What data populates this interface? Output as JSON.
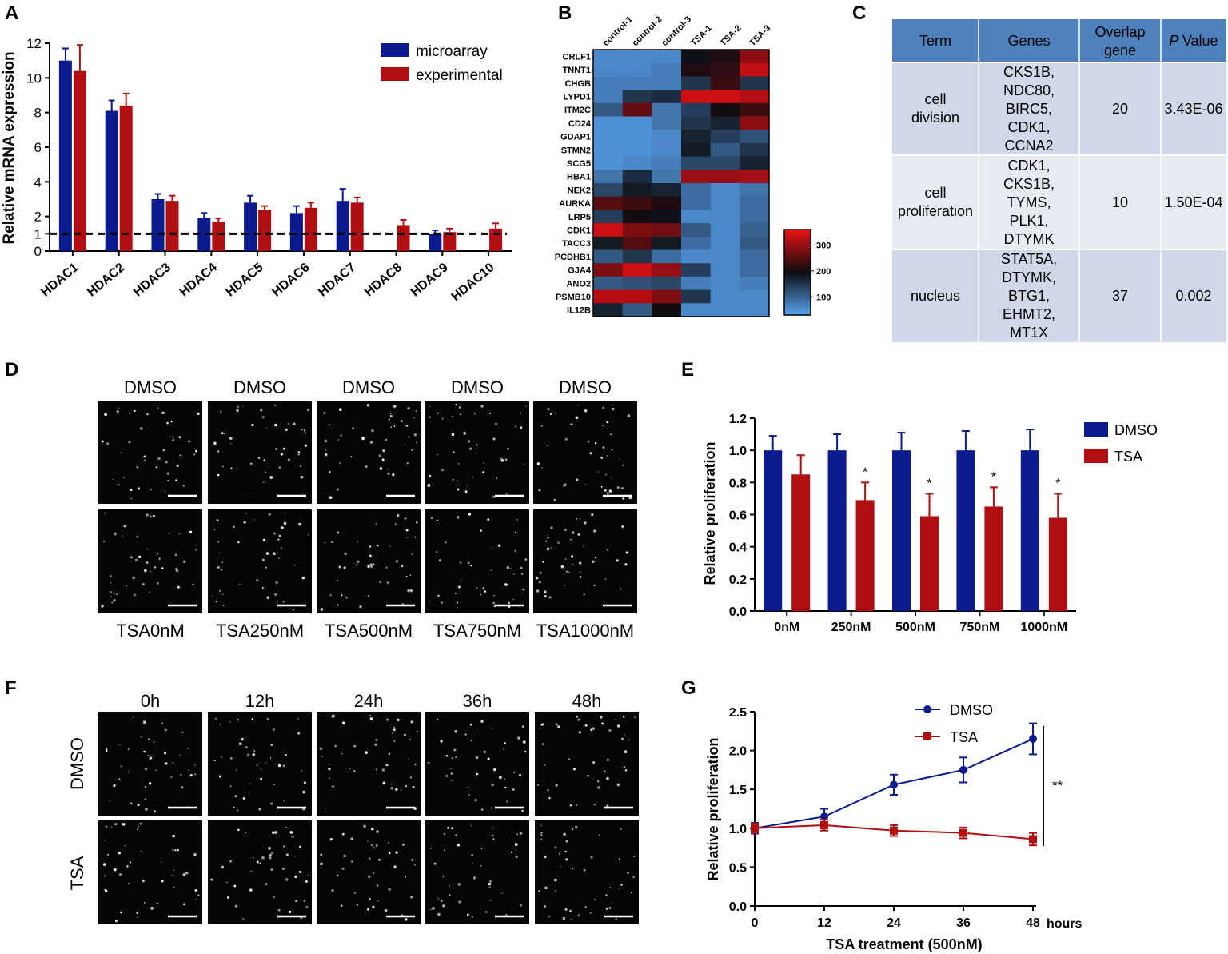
{
  "panels": {
    "A": "A",
    "B": "B",
    "C": "C",
    "D": "D",
    "E": "E",
    "F": "F",
    "G": "G"
  },
  "colors": {
    "blue": "#0b1a8c",
    "red": "#b00e10",
    "table_header": "#4f81bd",
    "table_row_a": "#cfd8e6",
    "table_row_b": "#e6ebf2"
  },
  "chart_data": [
    {
      "id": "A",
      "type": "bar",
      "title": "",
      "ylabel": "Relative mRNA expression",
      "xlabel": "",
      "ylim": [
        0,
        12
      ],
      "yticks": [
        "0",
        "1",
        "2",
        "4",
        "6",
        "8",
        "10",
        "12"
      ],
      "reference_line": 1,
      "categories": [
        "HDAC1",
        "HDAC2",
        "HDAC3",
        "HDAC4",
        "HDAC5",
        "HDAC6",
        "HDAC7",
        "HDAC8",
        "HDAC9",
        "HDAC10"
      ],
      "series": [
        {
          "name": "microarray",
          "color": "#0b1a8c",
          "values": [
            11.0,
            8.1,
            3.0,
            1.9,
            2.8,
            2.2,
            2.9,
            null,
            1.0,
            null
          ],
          "errors": [
            0.7,
            0.6,
            0.3,
            0.3,
            0.4,
            0.4,
            0.7,
            null,
            0.2,
            null
          ]
        },
        {
          "name": "experimental",
          "color": "#b00e10",
          "values": [
            10.4,
            8.4,
            2.9,
            1.7,
            2.4,
            2.5,
            2.8,
            1.5,
            1.1,
            1.3
          ],
          "errors": [
            1.5,
            0.7,
            0.3,
            0.2,
            0.2,
            0.3,
            0.3,
            0.3,
            0.2,
            0.3
          ]
        }
      ]
    },
    {
      "id": "B",
      "type": "heatmap",
      "columns": [
        "control-1",
        "control-2",
        "control-3",
        "TSA-1",
        "TSA-2",
        "TSA-3"
      ],
      "rows": [
        "CRLF1",
        "TNNT1",
        "CHGB",
        "LYPD1",
        "ITM2C",
        "CD24",
        "GDAP1",
        "STMN2",
        "SCG5",
        "HBA1",
        "NEK2",
        "AURKA",
        "LRP5",
        "CDK1",
        "TACC3",
        "PCDHB1",
        "GJA4",
        "ANO2",
        "PSMB10",
        "IL12B"
      ],
      "values": [
        [
          60,
          60,
          60,
          190,
          210,
          290
        ],
        [
          60,
          60,
          70,
          210,
          220,
          330
        ],
        [
          70,
          70,
          70,
          150,
          230,
          150
        ],
        [
          70,
          150,
          160,
          340,
          340,
          320
        ],
        [
          110,
          260,
          80,
          140,
          200,
          230
        ],
        [
          50,
          50,
          80,
          150,
          170,
          290
        ],
        [
          50,
          50,
          60,
          170,
          140,
          120
        ],
        [
          50,
          50,
          60,
          180,
          110,
          150
        ],
        [
          50,
          60,
          70,
          130,
          130,
          170
        ],
        [
          80,
          160,
          80,
          300,
          300,
          310
        ],
        [
          130,
          180,
          170,
          90,
          60,
          80
        ],
        [
          250,
          230,
          210,
          90,
          60,
          90
        ],
        [
          140,
          200,
          190,
          60,
          60,
          90
        ],
        [
          340,
          280,
          270,
          110,
          60,
          100
        ],
        [
          180,
          250,
          180,
          90,
          60,
          110
        ],
        [
          110,
          150,
          90,
          60,
          60,
          90
        ],
        [
          280,
          340,
          300,
          140,
          60,
          90
        ],
        [
          110,
          120,
          130,
          70,
          60,
          70
        ],
        [
          320,
          320,
          280,
          150,
          60,
          60
        ],
        [
          170,
          110,
          200,
          60,
          60,
          60
        ]
      ],
      "colorbar_ticks": [
        "300",
        "200",
        "100"
      ],
      "range": [
        30,
        360
      ]
    },
    {
      "id": "C",
      "type": "table",
      "headers": [
        "Term",
        "Genes",
        "Overlap gene",
        "P Value"
      ],
      "rows": [
        {
          "term": "cell division",
          "genes": [
            "CKS1B,",
            "NDC80,",
            "BIRC5,",
            "CDK1,",
            "CCNA2"
          ],
          "overlap": "20",
          "p": "3.43E-06"
        },
        {
          "term": "cell proliferation",
          "genes": [
            "CDK1,",
            "CKS1B,",
            "TYMS,",
            "PLK1,",
            "DTYMK"
          ],
          "overlap": "10",
          "p": "1.50E-04"
        },
        {
          "term": "nucleus",
          "genes": [
            "STAT5A,",
            "DTYMK,",
            "BTG1,",
            "EHMT2,",
            "MT1X"
          ],
          "overlap": "37",
          "p": "0.002"
        }
      ]
    },
    {
      "id": "E",
      "type": "bar",
      "title": "",
      "ylabel": "Relative proliferation",
      "xlabel": "",
      "ylim": [
        0,
        1.2
      ],
      "yticks": [
        "0.0",
        "0.2",
        "0.4",
        "0.6",
        "0.8",
        "1.0",
        "1.2"
      ],
      "categories": [
        "0nM",
        "250nM",
        "500nM",
        "750nM",
        "1000nM"
      ],
      "series": [
        {
          "name": "DMSO",
          "color": "#0b1a8c",
          "values": [
            1.0,
            1.0,
            1.0,
            1.0,
            1.0
          ],
          "errors": [
            0.09,
            0.1,
            0.11,
            0.12,
            0.13
          ]
        },
        {
          "name": "TSA",
          "color": "#b00e10",
          "values": [
            0.85,
            0.69,
            0.59,
            0.65,
            0.58
          ],
          "errors": [
            0.12,
            0.11,
            0.14,
            0.12,
            0.15
          ]
        }
      ],
      "annotations": [
        "",
        "*",
        "*",
        "*",
        "*"
      ]
    },
    {
      "id": "G",
      "type": "line",
      "title": "",
      "ylabel": "Relative proliferation",
      "xlabel": "TSA treatment (500nM)",
      "x_unit": "hours",
      "ylim": [
        0,
        2.5
      ],
      "yticks": [
        "0.0",
        "0.5",
        "1.0",
        "1.5",
        "2.0",
        "2.5"
      ],
      "x": [
        0,
        12,
        24,
        36,
        48
      ],
      "xticks": [
        "0",
        "12",
        "24",
        "36",
        "48"
      ],
      "series": [
        {
          "name": "DMSO",
          "color": "#0b1a8c",
          "marker": "circle",
          "values": [
            1.0,
            1.15,
            1.56,
            1.75,
            2.15
          ],
          "errors": [
            0.07,
            0.1,
            0.13,
            0.16,
            0.2
          ]
        },
        {
          "name": "TSA",
          "color": "#b00e10",
          "marker": "square",
          "values": [
            1.0,
            1.04,
            0.97,
            0.94,
            0.86
          ],
          "errors": [
            0.06,
            0.07,
            0.07,
            0.07,
            0.08
          ]
        }
      ],
      "significance": "**"
    }
  ],
  "panel_D": {
    "top_labels": [
      "DMSO",
      "DMSO",
      "DMSO",
      "DMSO",
      "DMSO"
    ],
    "bottom_labels": [
      "TSA0nM",
      "TSA250nM",
      "TSA500nM",
      "TSA750nM",
      "TSA1000nM"
    ]
  },
  "panel_F": {
    "time_labels": [
      "0h",
      "12h",
      "24h",
      "36h",
      "48h"
    ],
    "row_labels": [
      "DMSO",
      "TSA"
    ]
  }
}
